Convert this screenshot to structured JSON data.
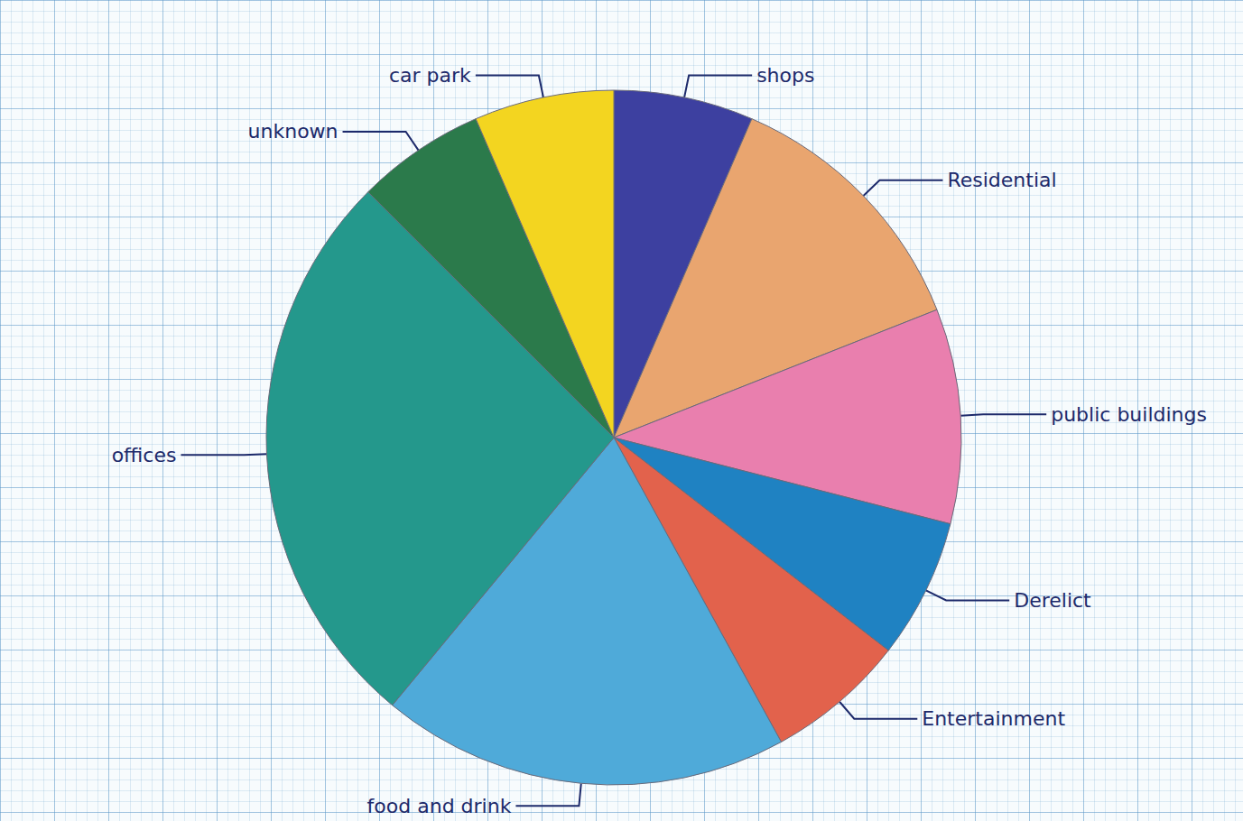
{
  "chart_data": {
    "type": "pie",
    "categories": [
      "shops",
      "Residential",
      "public buildings",
      "Derelict",
      "Entertainment",
      "food and drink",
      "offices",
      "unknown",
      "car park"
    ],
    "values": [
      6.5,
      12.5,
      10,
      6.5,
      6.5,
      19,
      26.5,
      6,
      6.5
    ],
    "colors": [
      "#3d40a0",
      "#e9a56f",
      "#e97fae",
      "#1f82c2",
      "#e2624c",
      "#4faad9",
      "#24988c",
      "#2b7a4b",
      "#f3d520"
    ]
  }
}
